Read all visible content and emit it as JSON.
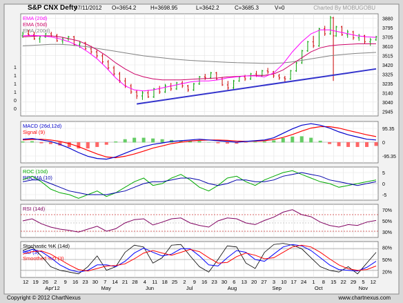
{
  "header": {
    "title": "S&P CNX Defty",
    "date": "07/11/2012",
    "open": "O=3654.2",
    "high": "H=3698.95",
    "low": "L=3642.2",
    "close": "C=3685.3",
    "volume": "V=0",
    "charted_by": "Charted By MOBUGOBU"
  },
  "footer": {
    "copyright": "Copyright © 2012 ChartNexus",
    "site": "www.chartnexus.com"
  },
  "colors": {
    "up": "#00a000",
    "down": "#cc0000",
    "ema20": "#ff00ff",
    "ema50": "#cc0066",
    "ema200": "#808080",
    "trend": "#3333cc",
    "macd": "#0000cc",
    "signal": "#ff0000",
    "roc": "#00aa00",
    "rocma": "#0000aa",
    "rsi": "#800060",
    "stoch_k": "#000000",
    "stoch_d": "#0000ff",
    "stoch_sd": "#ff0000",
    "panel_bg": "#ffffff",
    "outer_bg": "#d8d8d8"
  },
  "chart_data": [
    {
      "type": "line",
      "panel": "price",
      "title": "S&P CNX Defty",
      "legend": [
        "EMA (20d)",
        "EMA (50d)",
        "EMA (200d)"
      ],
      "legend_placement": "top-left",
      "ylim": [
        2900,
        3920
      ],
      "yticks": [
        "3880",
        "3795",
        "3705",
        "3610",
        "3515",
        "3420",
        "3325",
        "3235",
        "3140",
        "3040",
        "2945"
      ],
      "left_labels": [
        "1",
        "1",
        "1",
        "1",
        "0",
        "0"
      ],
      "grid": true,
      "candles_sampled": [
        [
          0,
          3700,
          3740,
          3680,
          3720
        ],
        [
          2,
          3720,
          3760,
          3700,
          3710
        ],
        [
          4,
          3710,
          3740,
          3660,
          3670
        ],
        [
          6,
          3670,
          3700,
          3630,
          3690
        ],
        [
          8,
          3690,
          3730,
          3680,
          3720
        ],
        [
          10,
          3720,
          3740,
          3690,
          3700
        ],
        [
          12,
          3700,
          3720,
          3640,
          3650
        ],
        [
          14,
          3650,
          3690,
          3620,
          3670
        ],
        [
          16,
          3670,
          3700,
          3650,
          3690
        ],
        [
          18,
          3690,
          3700,
          3600,
          3610
        ],
        [
          20,
          3610,
          3650,
          3580,
          3630
        ],
        [
          22,
          3630,
          3640,
          3560,
          3570
        ],
        [
          24,
          3570,
          3600,
          3520,
          3540
        ],
        [
          26,
          3540,
          3560,
          3480,
          3500
        ],
        [
          28,
          3500,
          3520,
          3420,
          3440
        ],
        [
          30,
          3440,
          3460,
          3360,
          3380
        ],
        [
          32,
          3380,
          3400,
          3300,
          3320
        ],
        [
          34,
          3320,
          3340,
          3230,
          3250
        ],
        [
          36,
          3250,
          3280,
          3180,
          3200
        ],
        [
          38,
          3200,
          3220,
          3120,
          3140
        ],
        [
          40,
          3140,
          3160,
          3070,
          3100
        ],
        [
          42,
          3100,
          3150,
          3060,
          3130
        ],
        [
          44,
          3130,
          3160,
          3080,
          3090
        ],
        [
          46,
          3090,
          3180,
          3080,
          3170
        ],
        [
          48,
          3170,
          3200,
          3120,
          3140
        ],
        [
          50,
          3140,
          3220,
          3130,
          3200
        ],
        [
          52,
          3200,
          3230,
          3150,
          3170
        ],
        [
          54,
          3170,
          3240,
          3160,
          3230
        ],
        [
          56,
          3230,
          3250,
          3180,
          3200
        ],
        [
          58,
          3200,
          3210,
          3140,
          3160
        ],
        [
          60,
          3160,
          3230,
          3150,
          3220
        ],
        [
          62,
          3220,
          3300,
          3210,
          3290
        ],
        [
          64,
          3290,
          3320,
          3260,
          3280
        ],
        [
          66,
          3280,
          3340,
          3270,
          3330
        ],
        [
          68,
          3330,
          3340,
          3260,
          3270
        ],
        [
          70,
          3270,
          3290,
          3200,
          3210
        ],
        [
          72,
          3210,
          3250,
          3160,
          3180
        ],
        [
          74,
          3180,
          3260,
          3170,
          3250
        ],
        [
          76,
          3250,
          3300,
          3240,
          3290
        ],
        [
          78,
          3290,
          3310,
          3250,
          3270
        ],
        [
          80,
          3270,
          3330,
          3260,
          3320
        ],
        [
          82,
          3320,
          3350,
          3290,
          3300
        ],
        [
          84,
          3300,
          3360,
          3290,
          3350
        ],
        [
          86,
          3350,
          3380,
          3320,
          3340
        ],
        [
          88,
          3340,
          3350,
          3280,
          3300
        ],
        [
          90,
          3300,
          3320,
          3260,
          3280
        ],
        [
          92,
          3280,
          3300,
          3240,
          3270
        ],
        [
          94,
          3270,
          3360,
          3260,
          3350
        ],
        [
          96,
          3350,
          3440,
          3340,
          3430
        ],
        [
          98,
          3430,
          3560,
          3420,
          3550
        ],
        [
          100,
          3550,
          3650,
          3540,
          3640
        ],
        [
          102,
          3640,
          3700,
          3580,
          3600
        ],
        [
          104,
          3600,
          3780,
          3590,
          3770
        ],
        [
          106,
          3770,
          3800,
          3700,
          3720
        ],
        [
          108,
          3720,
          3900,
          3710,
          3880
        ],
        [
          109,
          3880,
          3890,
          3250,
          3700
        ],
        [
          110,
          3700,
          3800,
          3690,
          3790
        ],
        [
          112,
          3790,
          3800,
          3700,
          3710
        ],
        [
          114,
          3710,
          3760,
          3680,
          3740
        ],
        [
          116,
          3740,
          3750,
          3660,
          3680
        ],
        [
          118,
          3680,
          3720,
          3650,
          3700
        ],
        [
          120,
          3700,
          3710,
          3620,
          3640
        ],
        [
          122,
          3640,
          3680,
          3600,
          3660
        ],
        [
          124,
          3660,
          3700,
          3650,
          3690
        ]
      ],
      "ema20": [
        3700,
        3705,
        3700,
        3690,
        3670,
        3640,
        3600,
        3540,
        3470,
        3380,
        3280,
        3200,
        3160,
        3150,
        3160,
        3180,
        3200,
        3220,
        3240,
        3250,
        3250,
        3260,
        3280,
        3290,
        3300,
        3300,
        3290,
        3330,
        3420,
        3540,
        3640,
        3720,
        3760,
        3760,
        3740,
        3720,
        3700,
        3690,
        3685
      ],
      "ema50": [
        3690,
        3695,
        3700,
        3700,
        3690,
        3670,
        3650,
        3610,
        3560,
        3500,
        3430,
        3370,
        3320,
        3290,
        3270,
        3260,
        3260,
        3260,
        3265,
        3270,
        3275,
        3280,
        3290,
        3295,
        3300,
        3305,
        3305,
        3320,
        3360,
        3420,
        3480,
        3540,
        3580,
        3600,
        3610,
        3615,
        3620,
        3620,
        3620
      ],
      "ema200": [
        3600,
        3605,
        3610,
        3615,
        3615,
        3610,
        3600,
        3590,
        3575,
        3560,
        3545,
        3530,
        3515,
        3500,
        3490,
        3480,
        3470,
        3462,
        3455,
        3450,
        3445,
        3440,
        3436,
        3432,
        3430,
        3428,
        3425,
        3425,
        3430,
        3440,
        3455,
        3470,
        3485,
        3500,
        3510,
        3518,
        3525,
        3530,
        3535
      ],
      "trendline": [
        [
          40,
          3020
        ],
        [
          124,
          3370
        ]
      ]
    },
    {
      "type": "line",
      "panel": "macd",
      "legend": [
        "MACD (26d,12d)",
        "Signal (9)"
      ],
      "legend_placement": "top-left",
      "ylim": [
        -140,
        140
      ],
      "yticks": [
        "95.35",
        "0",
        "-95.35"
      ],
      "macd": [
        20,
        25,
        15,
        5,
        -15,
        -40,
        -70,
        -95,
        -110,
        -115,
        -100,
        -75,
        -50,
        -30,
        -15,
        -5,
        5,
        10,
        15,
        20,
        15,
        10,
        5,
        0,
        5,
        10,
        15,
        30,
        60,
        90,
        115,
        125,
        115,
        95,
        70,
        50,
        35,
        20,
        15
      ],
      "signal": [
        15,
        18,
        20,
        15,
        5,
        -10,
        -30,
        -55,
        -80,
        -100,
        -105,
        -95,
        -80,
        -60,
        -40,
        -25,
        -10,
        0,
        8,
        12,
        15,
        15,
        12,
        8,
        6,
        7,
        10,
        18,
        32,
        52,
        75,
        95,
        105,
        105,
        95,
        80,
        65,
        50,
        38
      ]
    },
    {
      "type": "line",
      "panel": "roc",
      "legend": [
        "ROC (10d)",
        "ROCMA (10)"
      ],
      "legend_placement": "top-left",
      "ylim": [
        -9,
        9
      ],
      "yticks": [
        "5",
        "0",
        "-5"
      ],
      "roc": [
        2,
        4,
        1,
        -3,
        -5,
        -6,
        -8,
        -6,
        -4,
        -7,
        -5,
        -2,
        1,
        3,
        -1,
        0,
        3,
        5,
        2,
        -2,
        -4,
        -1,
        3,
        4,
        1,
        -1,
        2,
        4,
        6,
        7,
        5,
        3,
        1,
        0,
        -2,
        -1,
        0,
        1,
        2
      ],
      "rocma": [
        1,
        2,
        2,
        0,
        -2,
        -4,
        -5,
        -6,
        -6,
        -6,
        -5,
        -4,
        -2,
        0,
        1,
        1,
        2,
        3,
        3,
        2,
        0,
        -1,
        0,
        2,
        2,
        1,
        1,
        2,
        4,
        5,
        6,
        5,
        4,
        2,
        1,
        0,
        -1,
        0,
        1
      ]
    },
    {
      "type": "line",
      "panel": "rsi",
      "legend": [
        "RSI (14d)"
      ],
      "legend_placement": "top-left",
      "ylim": [
        15,
        95
      ],
      "yticks": [
        "70%",
        "50%",
        "30%"
      ],
      "rsi": [
        55,
        60,
        48,
        40,
        35,
        32,
        28,
        35,
        42,
        30,
        36,
        50,
        58,
        60,
        45,
        52,
        60,
        62,
        50,
        44,
        40,
        55,
        62,
        60,
        50,
        46,
        56,
        64,
        76,
        82,
        70,
        65,
        52,
        44,
        40,
        46,
        44,
        52,
        56
      ]
    },
    {
      "type": "line",
      "panel": "stochastic",
      "legend": [
        "Stochastic %K (14d)",
        "%D (3)",
        "Smoothed %D (3)"
      ],
      "legend_placement": "top-left",
      "ylim": [
        0,
        100
      ],
      "yticks": [
        "80%",
        "50%",
        "20%"
      ],
      "stoch_k": [
        75,
        85,
        60,
        30,
        20,
        15,
        10,
        30,
        60,
        20,
        30,
        70,
        90,
        85,
        40,
        55,
        90,
        92,
        60,
        30,
        15,
        50,
        88,
        85,
        40,
        25,
        70,
        92,
        95,
        90,
        80,
        55,
        30,
        20,
        15,
        30,
        10,
        40,
        70
      ],
      "stoch_d": [
        70,
        78,
        72,
        55,
        35,
        22,
        15,
        20,
        35,
        35,
        30,
        45,
        68,
        82,
        70,
        60,
        65,
        80,
        80,
        60,
        35,
        32,
        55,
        75,
        70,
        50,
        45,
        65,
        85,
        92,
        88,
        75,
        55,
        35,
        22,
        20,
        18,
        28,
        45
      ],
      "stoch_sd": [
        65,
        72,
        74,
        65,
        50,
        35,
        22,
        18,
        25,
        32,
        33,
        38,
        52,
        68,
        75,
        68,
        62,
        70,
        78,
        72,
        55,
        40,
        42,
        58,
        68,
        62,
        52,
        55,
        70,
        85,
        90,
        85,
        70,
        52,
        35,
        24,
        20,
        22,
        32
      ]
    }
  ],
  "x_axis": {
    "ticks": [
      "12",
      "19",
      "26",
      "2",
      "9",
      "16",
      "23",
      "30",
      "7",
      "14",
      "21",
      "28",
      "4",
      "11",
      "18",
      "25",
      "2",
      "9",
      "16",
      "23",
      "30",
      "6",
      "13",
      "20",
      "27",
      "3",
      "10",
      "17",
      "24",
      "1",
      "8",
      "15",
      "22",
      "29",
      "5",
      "12"
    ],
    "months": [
      "Apr'12",
      "May",
      "Jun",
      "Jul",
      "Aug",
      "Sep",
      "Oct",
      "Nov"
    ]
  }
}
